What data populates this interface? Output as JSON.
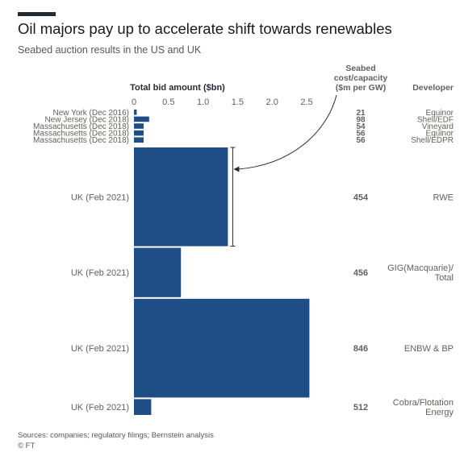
{
  "title": "Oil majors pay up to accelerate shift towards renewables",
  "subtitle": "Seabed auction results in the US and UK",
  "footer": {
    "source": "Sources: companies; regulatory filings; Bernstein analysis",
    "credit": "© FT"
  },
  "colors": {
    "bar": "#1f4e87",
    "text": "#262a33",
    "muted": "#66605c"
  },
  "chart_data": {
    "type": "bar",
    "orientation": "horizontal",
    "variable_width": true,
    "xlabel": "Total bid amount ($bn)",
    "xlim": [
      0,
      2.5
    ],
    "xticks": [
      "0",
      "0.5",
      "1.0",
      "1.5",
      "2.0",
      "2.5"
    ],
    "tick_values": [
      0,
      0.5,
      1.0,
      1.5,
      2.0,
      2.5
    ],
    "cost_header": [
      "Seabed",
      "cost/capacity",
      "($m per GW)"
    ],
    "developer_header": "Developer",
    "annotation": "Bracket and arrow link the first UK bar to its cost/capacity value",
    "rows": [
      {
        "label": "New York (Dec 2016)",
        "value": 0.04,
        "capacity_gw": 0.0,
        "cost": "21",
        "developer": [
          "Equinor"
        ]
      },
      {
        "label": "New Jersey (Dec 2018)",
        "value": 0.22,
        "capacity_gw": 0.0,
        "cost": "98",
        "developer": [
          "Shell/EDF"
        ]
      },
      {
        "label": "Massachusetts (Dec 2018)",
        "value": 0.14,
        "capacity_gw": 0.0,
        "cost": "54",
        "developer": [
          "Vineyard"
        ]
      },
      {
        "label": "Massachusetts (Dec 2018)",
        "value": 0.14,
        "capacity_gw": 0.0,
        "cost": "56",
        "developer": [
          "Equinor"
        ]
      },
      {
        "label": "Massachusetts (Dec 2018)",
        "value": 0.14,
        "capacity_gw": 0.0,
        "cost": "56",
        "developer": [
          "Shell/EDPR"
        ]
      },
      {
        "label": "UK (Feb 2021)",
        "value": 1.36,
        "capacity_gw": 3.0,
        "cost": "454",
        "developer": [
          "RWE"
        ]
      },
      {
        "label": "UK (Feb 2021)",
        "value": 0.68,
        "capacity_gw": 1.5,
        "cost": "456",
        "developer": [
          "GIG(Macquarie)/",
          "Total"
        ]
      },
      {
        "label": "UK (Feb 2021)",
        "value": 2.54,
        "capacity_gw": 3.0,
        "cost": "846",
        "developer": [
          "ENBW & BP"
        ]
      },
      {
        "label": "UK (Feb 2021)",
        "value": 0.25,
        "capacity_gw": 0.48,
        "cost": "512",
        "developer": [
          "Cobra/Flotation",
          "Energy"
        ]
      }
    ]
  }
}
